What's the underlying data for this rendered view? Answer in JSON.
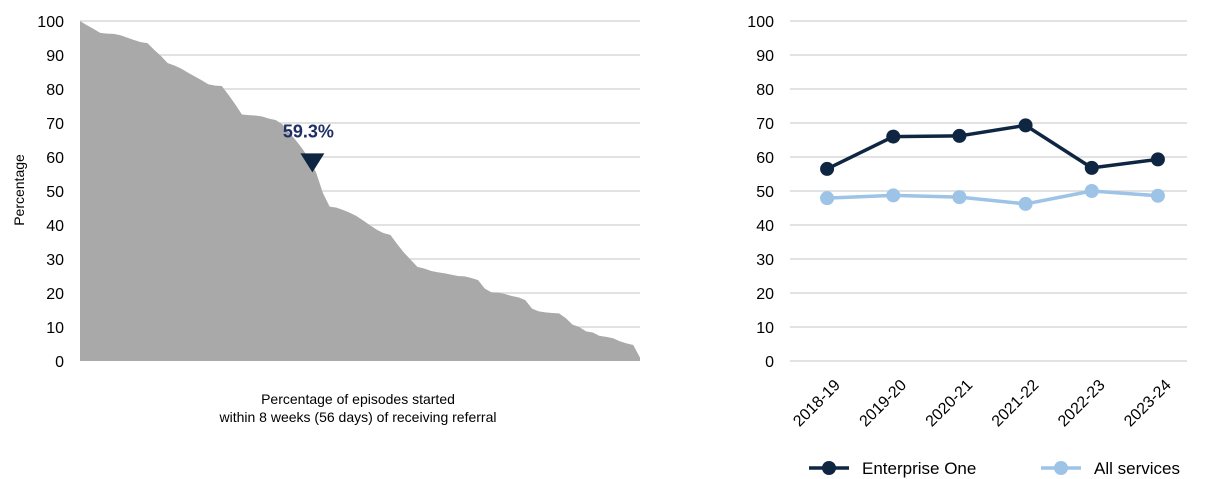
{
  "colors": {
    "area": "#a9a9a9",
    "grid": "#d9d9d9",
    "highlight": "#0f2643",
    "annotation_text": "#1f2f66",
    "series_one": "#0f2643",
    "series_two": "#9dc3e6"
  },
  "chart_data": [
    {
      "type": "area",
      "title": "",
      "xlabel_lines": [
        "Percentage of episodes started",
        "within 8 weeks (56 days) of receiving referral"
      ],
      "ylabel": "Percentage",
      "ylim": [
        0,
        100
      ],
      "yticks": [
        "0",
        "10",
        "20",
        "30",
        "40",
        "50",
        "60",
        "70",
        "80",
        "90",
        "100"
      ],
      "grid": "horizontal",
      "y": [
        100,
        98.8,
        97.7,
        96.5,
        96.3,
        96.2,
        95.8,
        95.1,
        94.4,
        93.8,
        93.5,
        91.5,
        89.7,
        87.6,
        86.9,
        86.0,
        84.8,
        83.7,
        82.6,
        81.4,
        81.0,
        80.9,
        78.3,
        75.5,
        72.5,
        72.3,
        72.2,
        71.9,
        71.3,
        70.9,
        69.6,
        67.2,
        64.9,
        62.3,
        59.3,
        55.4,
        49.4,
        45.4,
        45.1,
        44.4,
        43.6,
        42.6,
        41.3,
        39.9,
        38.6,
        37.6,
        37.1,
        34.4,
        31.9,
        29.8,
        27.7,
        27.2,
        26.5,
        26.1,
        25.8,
        25.4,
        25.0,
        24.9,
        24.4,
        23.8,
        21.3,
        20.2,
        20.1,
        19.7,
        19.1,
        18.7,
        17.9,
        15.4,
        14.6,
        14.3,
        14.1,
        14.0,
        12.6,
        10.7,
        10.0,
        8.7,
        8.4,
        7.4,
        7.1,
        6.7,
        5.8,
        5.2,
        4.7,
        1.0
      ],
      "highlight": {
        "index": 34,
        "value": 59.3,
        "label": "59.3%"
      }
    },
    {
      "type": "line",
      "title": "",
      "ylim": [
        0,
        100
      ],
      "yticks": [
        "0",
        "10",
        "20",
        "30",
        "40",
        "50",
        "60",
        "70",
        "80",
        "90",
        "100"
      ],
      "grid": "horizontal",
      "legend_position": "bottom",
      "categories": [
        "2018-19",
        "2019-20",
        "2020-21",
        "2021-22",
        "2022-23",
        "2023-24"
      ],
      "series": [
        {
          "name": "Enterprise One",
          "values": [
            56.5,
            66.0,
            66.2,
            69.3,
            56.8,
            59.3
          ]
        },
        {
          "name": "All services",
          "values": [
            47.9,
            48.7,
            48.2,
            46.2,
            50.0,
            48.6
          ]
        }
      ]
    }
  ]
}
